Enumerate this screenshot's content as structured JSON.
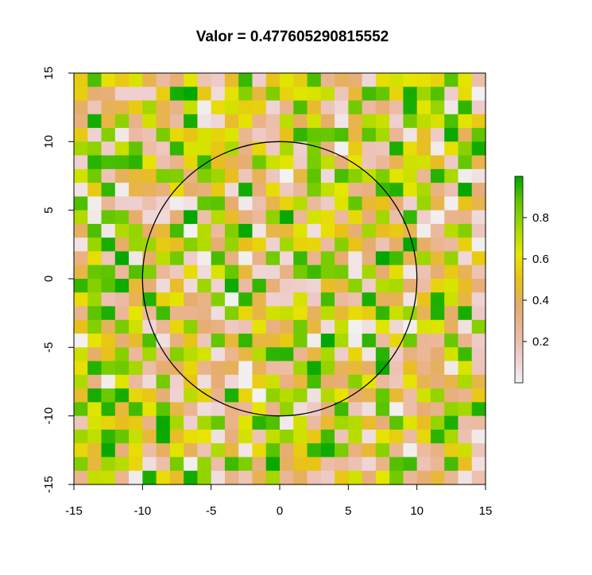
{
  "chart_data": {
    "type": "heatmap",
    "title": "Valor =  0.477605290815552",
    "xlabel": "",
    "ylabel": "",
    "xlim": [
      -15,
      15
    ],
    "ylim": [
      -15,
      15
    ],
    "x_ticks": [
      "-15",
      "-10",
      "-5",
      "0",
      "5",
      "10",
      "15"
    ],
    "y_ticks": [
      "-15",
      "-10",
      "-5",
      "0",
      "5",
      "10",
      "15"
    ],
    "grid": false,
    "legend_placement": "right",
    "colorbar": {
      "ticks": [
        "0.2",
        "0.4",
        "0.6",
        "0.8"
      ],
      "range": [
        0,
        1
      ],
      "palette": "terrain (white-pink-tan-yellow-green)"
    },
    "circle": {
      "center": [
        0,
        0
      ],
      "radius": 10
    },
    "grid_cells": {
      "nx": 30,
      "ny": 30,
      "value_range": [
        0,
        1
      ]
    },
    "colors": {
      "c0": "#f2f2f2",
      "c1": "#efcfcf",
      "c2": "#ebb89b",
      "c3": "#e6ad6e",
      "c4": "#e8c01a",
      "c5": "#e6e600",
      "c6": "#a6d800",
      "c7": "#63c600",
      "c8": "#00a600"
    }
  }
}
